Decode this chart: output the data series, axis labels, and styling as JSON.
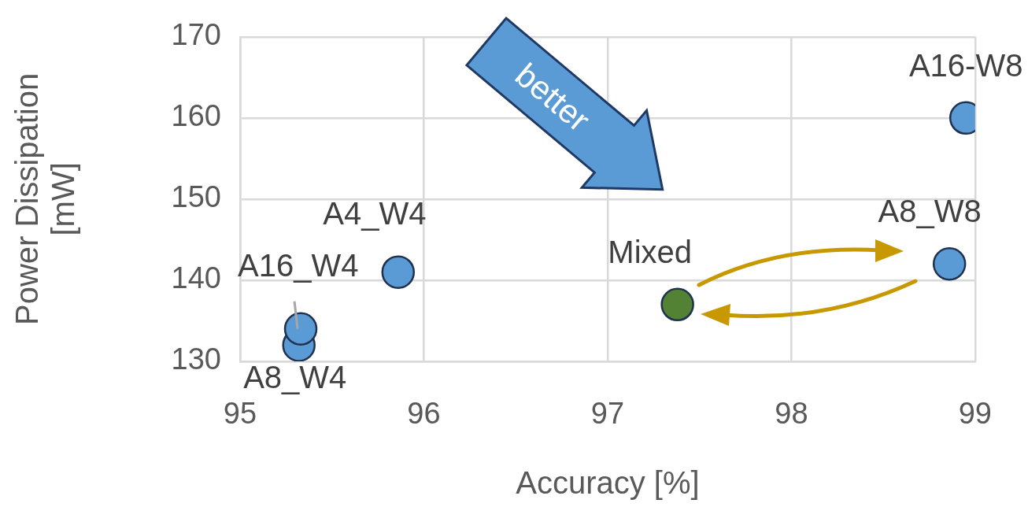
{
  "chart_data": {
    "type": "scatter",
    "xlabel": "Accuracy [%]",
    "ylabel": "Power Dissipation [mW]",
    "xlim": [
      95,
      99
    ],
    "xticks": [
      95,
      96,
      97,
      98,
      99
    ],
    "ylim": [
      130,
      170
    ],
    "yticks": [
      130,
      140,
      150,
      160,
      170
    ],
    "grid": true,
    "legend": false,
    "marker": "circle",
    "series": [
      {
        "name": "A16-W8",
        "color": "#5b9bd5",
        "x": [
          98.95
        ],
        "values": [
          160
        ]
      },
      {
        "name": "A8_W8",
        "color": "#5b9bd5",
        "x": [
          98.86
        ],
        "values": [
          142
        ]
      },
      {
        "name": "Mixed",
        "color": "#548235",
        "x": [
          97.38
        ],
        "values": [
          137
        ]
      },
      {
        "name": "A4_W4",
        "color": "#5b9bd5",
        "x": [
          95.86
        ],
        "values": [
          141
        ]
      },
      {
        "name": "A16_W4",
        "color": "#5b9bd5",
        "x": [
          95.33
        ],
        "values": [
          134
        ]
      },
      {
        "name": "A8_W4",
        "color": "#5b9bd5",
        "x": [
          95.32
        ],
        "values": [
          132
        ]
      }
    ],
    "annotations": [
      "better"
    ]
  }
}
